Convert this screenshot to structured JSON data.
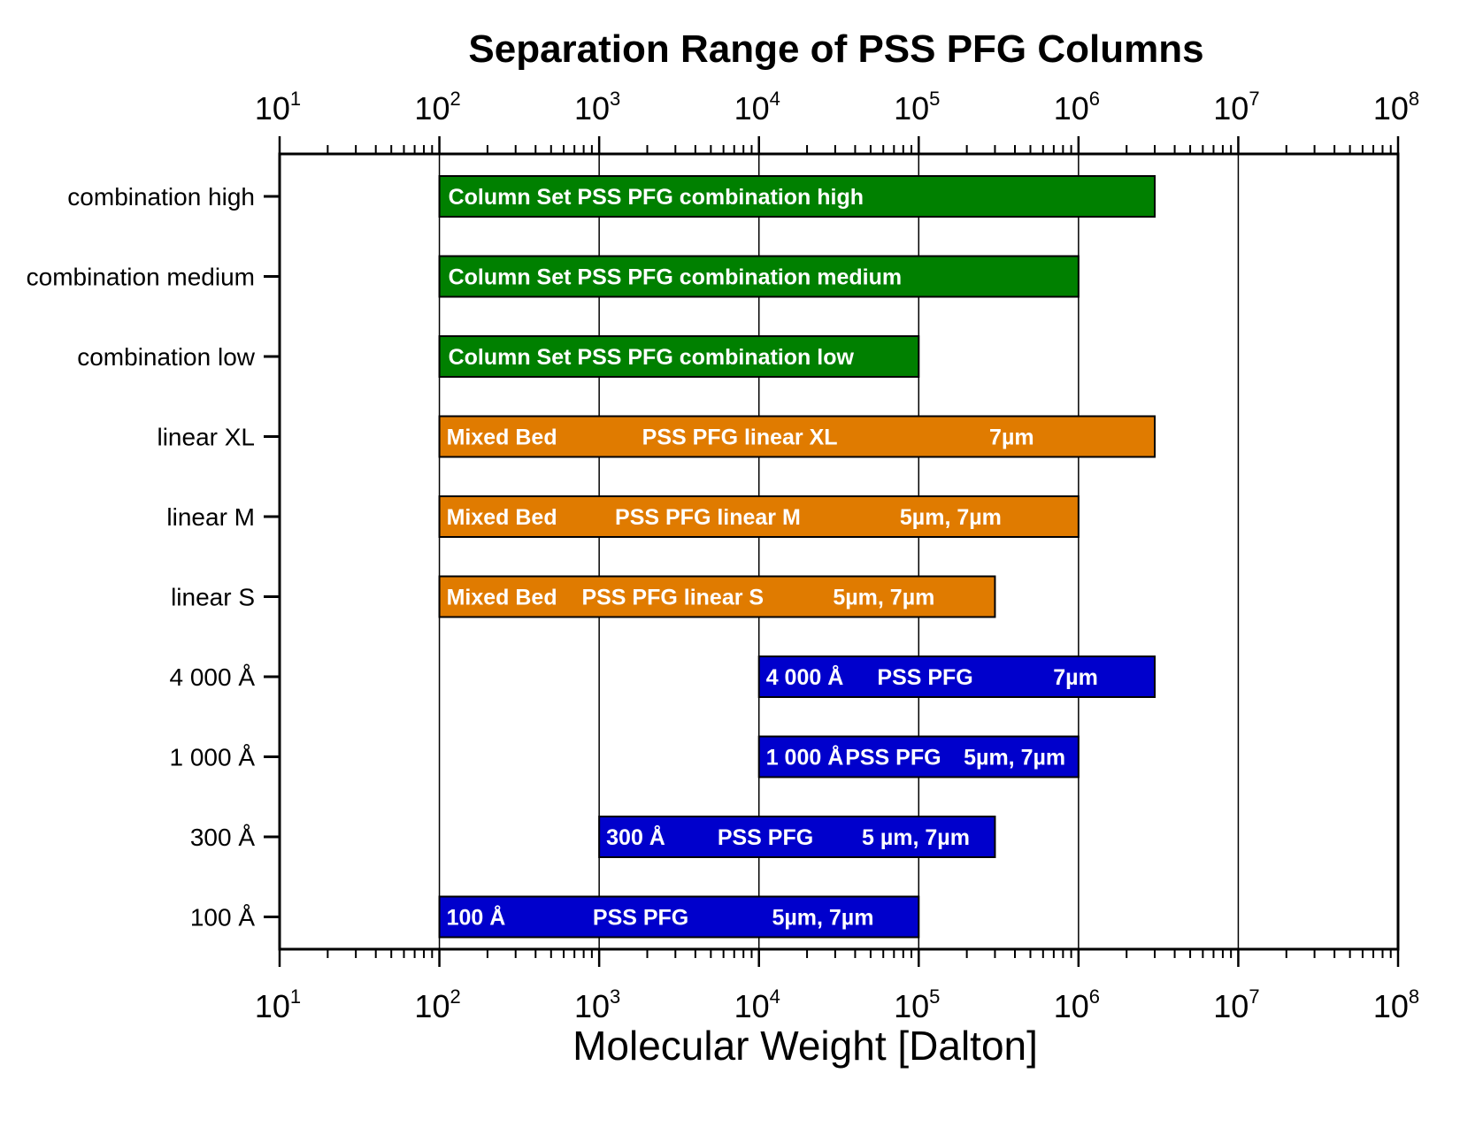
{
  "chart_data": {
    "type": "bar",
    "orientation": "horizontal-range",
    "title": "Separation Range of PSS PFG Columns",
    "xlabel": "Molecular Weight [Dalton]",
    "ylabel": "",
    "xscale": "log",
    "xlim": [
      10,
      100000000
    ],
    "x_ticks": [
      {
        "base": "10",
        "exp": "1"
      },
      {
        "base": "10",
        "exp": "2"
      },
      {
        "base": "10",
        "exp": "3"
      },
      {
        "base": "10",
        "exp": "4"
      },
      {
        "base": "10",
        "exp": "5"
      },
      {
        "base": "10",
        "exp": "6"
      },
      {
        "base": "10",
        "exp": "7"
      },
      {
        "base": "10",
        "exp": "8"
      }
    ],
    "grid": "vertical major",
    "categories": [
      "combination high",
      "combination medium",
      "combination low",
      "linear XL",
      "linear M",
      "linear S",
      "4 000 Å",
      "1 000 Å",
      "300 Å",
      "100 Å"
    ],
    "ranges": [
      {
        "start": 100,
        "end": 3000000,
        "color": "#008000",
        "labels": [
          "Column Set PSS PFG combination high"
        ]
      },
      {
        "start": 100,
        "end": 1000000,
        "color": "#008000",
        "labels": [
          "Column Set PSS PFG combination medium"
        ]
      },
      {
        "start": 100,
        "end": 100000,
        "color": "#008000",
        "labels": [
          "Column Set PSS PFG combination low"
        ]
      },
      {
        "start": 100,
        "end": 3000000,
        "color": "#E07B00",
        "labels": [
          "Mixed Bed",
          "PSS PFG linear XL",
          "7µm"
        ]
      },
      {
        "start": 100,
        "end": 1000000,
        "color": "#E07B00",
        "labels": [
          "Mixed Bed",
          "PSS PFG linear M",
          "5µm, 7µm"
        ]
      },
      {
        "start": 100,
        "end": 300000,
        "color": "#E07B00",
        "labels": [
          "Mixed Bed",
          "PSS PFG linear S",
          "5µm, 7µm"
        ]
      },
      {
        "start": 10000,
        "end": 3000000,
        "color": "#0000CC",
        "labels": [
          "4 000 Å",
          "PSS PFG",
          "7µm"
        ]
      },
      {
        "start": 10000,
        "end": 1000000,
        "color": "#0000CC",
        "labels": [
          "1 000 Å",
          "PSS PFG",
          "5µm, 7µm"
        ]
      },
      {
        "start": 1000,
        "end": 300000,
        "color": "#0000CC",
        "labels": [
          "300 Å",
          "PSS PFG",
          "5 µm, 7µm"
        ]
      },
      {
        "start": 100,
        "end": 100000,
        "color": "#0000CC",
        "labels": [
          "100 Å",
          "PSS PFG",
          "5µm, 7µm"
        ]
      }
    ]
  }
}
